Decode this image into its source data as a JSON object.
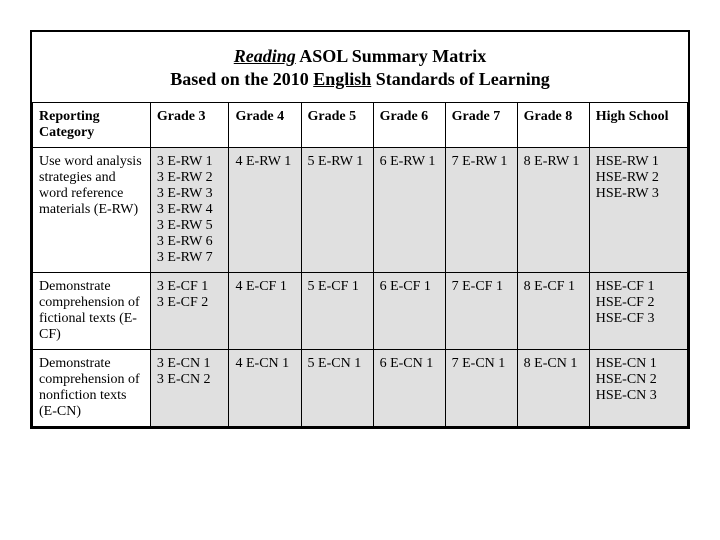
{
  "title": {
    "line1_ital_underline": "Reading",
    "line1_rest": " ASOL Summary Matrix",
    "line2_pre": "Based on the 2010 ",
    "line2_underline": "English",
    "line2_post": " Standards of Learning"
  },
  "table": {
    "columns": [
      "Reporting Category",
      "Grade 3",
      "Grade 4",
      "Grade 5",
      "Grade 6",
      "Grade 7",
      "Grade 8",
      "High School"
    ],
    "rows": [
      {
        "label": "Use word analysis strategies and word reference materials (E-RW)",
        "cells": [
          [
            "3 E-RW 1",
            "3 E-RW 2",
            "3 E-RW 3",
            "3 E-RW 4",
            "3 E-RW 5",
            "3 E-RW 6",
            "3 E-RW 7"
          ],
          [
            "4 E-RW 1"
          ],
          [
            "5 E-RW 1"
          ],
          [
            "6 E-RW 1"
          ],
          [
            "7 E-RW 1"
          ],
          [
            "8 E-RW 1"
          ],
          [
            "HSE-RW 1",
            "HSE-RW 2",
            "HSE-RW 3"
          ]
        ]
      },
      {
        "label": "Demonstrate comprehension of fictional texts (E-CF)",
        "cells": [
          [
            "3 E-CF 1",
            "3 E-CF 2"
          ],
          [
            "4 E-CF 1"
          ],
          [
            "5 E-CF 1"
          ],
          [
            "6 E-CF 1"
          ],
          [
            "7 E-CF 1"
          ],
          [
            "8 E-CF 1"
          ],
          [
            "HSE-CF 1",
            "HSE-CF 2",
            "HSE-CF 3"
          ]
        ]
      },
      {
        "label": "Demonstrate comprehension of nonfiction texts (E-CN)",
        "cells": [
          [
            "3 E-CN 1",
            "3 E-CN 2"
          ],
          [
            "4 E-CN 1"
          ],
          [
            "5 E-CN 1"
          ],
          [
            "6 E-CN 1"
          ],
          [
            "7 E-CN 1"
          ],
          [
            "8 E-CN 1"
          ],
          [
            "HSE-CN 1",
            "HSE-CN 2",
            "HSE-CN 3"
          ]
        ]
      }
    ],
    "col_widths_pct": [
      18,
      12,
      11,
      11,
      11,
      11,
      11,
      15
    ],
    "header_bg": "#ffffff",
    "data_bg": "#e0e0e0",
    "border_color": "#000000",
    "title_fontsize_pt": 14,
    "body_fontsize_pt": 11
  }
}
